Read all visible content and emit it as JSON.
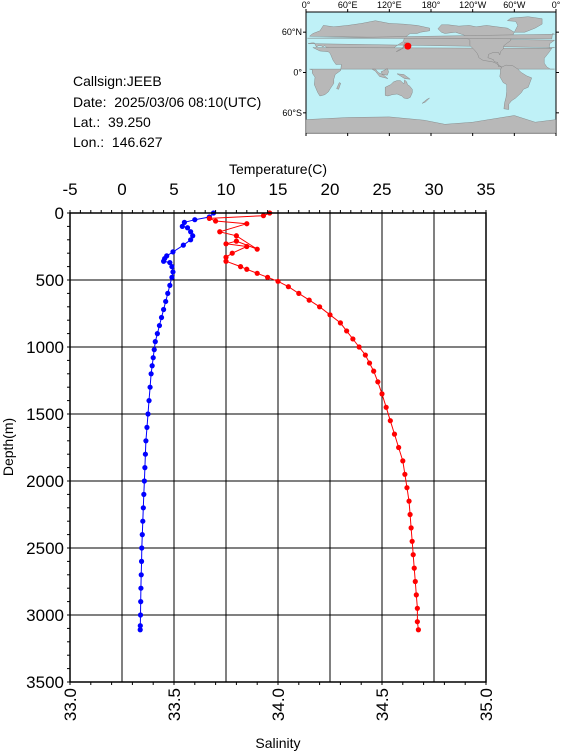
{
  "station": {
    "callsign": "Callsign:JEEB",
    "date": "Date:  2025/03/06 08:10(UTC)",
    "lat": "Lat.:  39.250",
    "lon": "Lon.:  146.627"
  },
  "map": {
    "lon_ticks": [
      "0°",
      "60°E",
      "120°E",
      "180°",
      "120°W",
      "60°W",
      "0°"
    ],
    "lat_ticks": [
      "60°N",
      "0°",
      "60°S"
    ],
    "marker": {
      "lon": 146.627,
      "lat": 39.25
    },
    "colors": {
      "ocean": "#bff1f7",
      "land": "#b8b8b8",
      "marker": "#ff0000"
    }
  },
  "chart_data": {
    "type": "line",
    "ylabel": "Depth(m)",
    "ylim": [
      3500,
      0
    ],
    "yticks": [
      0,
      500,
      1000,
      1500,
      2000,
      2500,
      3000,
      3500
    ],
    "x_top": {
      "label": "Temperature(C)",
      "range": [
        -5,
        35
      ],
      "ticks": [
        -5,
        0,
        5,
        10,
        15,
        20,
        25,
        30,
        35
      ]
    },
    "x_bottom": {
      "label": "Salinity",
      "range": [
        33.0,
        35.0
      ],
      "ticks": [
        "33.0",
        "33.5",
        "34.0",
        "34.5",
        "35.0"
      ]
    },
    "grid": true,
    "series": [
      {
        "axis": "top",
        "color": "#0000ff",
        "points": [
          [
            8.8,
            0
          ],
          [
            8.4,
            30
          ],
          [
            7.0,
            50
          ],
          [
            6.0,
            70
          ],
          [
            5.8,
            100
          ],
          [
            6.3,
            110
          ],
          [
            6.6,
            140
          ],
          [
            6.8,
            170
          ],
          [
            6.6,
            200
          ],
          [
            5.9,
            240
          ],
          [
            4.9,
            290
          ],
          [
            4.3,
            320
          ],
          [
            4.1,
            340
          ],
          [
            4.0,
            360
          ],
          [
            4.6,
            370
          ],
          [
            4.8,
            400
          ],
          [
            4.9,
            440
          ],
          [
            4.8,
            480
          ],
          [
            4.6,
            540
          ],
          [
            4.4,
            600
          ],
          [
            4.2,
            660
          ],
          [
            4.0,
            720
          ],
          [
            3.8,
            780
          ],
          [
            3.6,
            840
          ],
          [
            3.4,
            900
          ],
          [
            3.2,
            960
          ],
          [
            3.1,
            1020
          ],
          [
            3.0,
            1080
          ],
          [
            2.9,
            1140
          ],
          [
            2.8,
            1200
          ],
          [
            2.7,
            1300
          ],
          [
            2.6,
            1400
          ],
          [
            2.5,
            1500
          ],
          [
            2.4,
            1600
          ],
          [
            2.3,
            1700
          ],
          [
            2.25,
            1800
          ],
          [
            2.2,
            1900
          ],
          [
            2.15,
            2000
          ],
          [
            2.1,
            2100
          ],
          [
            2.05,
            2200
          ],
          [
            2.0,
            2300
          ],
          [
            1.95,
            2400
          ],
          [
            1.9,
            2500
          ],
          [
            1.88,
            2600
          ],
          [
            1.85,
            2700
          ],
          [
            1.82,
            2800
          ],
          [
            1.8,
            2900
          ],
          [
            1.78,
            3000
          ],
          [
            1.76,
            3080
          ],
          [
            1.75,
            3110
          ]
        ]
      },
      {
        "axis": "bottom",
        "color": "#ff0000",
        "points": [
          [
            33.96,
            0
          ],
          [
            33.93,
            20
          ],
          [
            33.67,
            40
          ],
          [
            33.7,
            60
          ],
          [
            33.85,
            80
          ],
          [
            33.72,
            140
          ],
          [
            33.8,
            170
          ],
          [
            33.9,
            270
          ],
          [
            33.8,
            210
          ],
          [
            33.75,
            230
          ],
          [
            33.85,
            250
          ],
          [
            33.78,
            300
          ],
          [
            33.75,
            330
          ],
          [
            33.75,
            360
          ],
          [
            33.82,
            400
          ],
          [
            33.85,
            420
          ],
          [
            33.9,
            450
          ],
          [
            33.95,
            480
          ],
          [
            34.0,
            510
          ],
          [
            34.05,
            550
          ],
          [
            34.1,
            600
          ],
          [
            34.15,
            650
          ],
          [
            34.2,
            700
          ],
          [
            34.25,
            760
          ],
          [
            34.3,
            820
          ],
          [
            34.33,
            880
          ],
          [
            34.36,
            940
          ],
          [
            34.39,
            1000
          ],
          [
            34.42,
            1060
          ],
          [
            34.44,
            1120
          ],
          [
            34.46,
            1180
          ],
          [
            34.48,
            1260
          ],
          [
            34.5,
            1350
          ],
          [
            34.52,
            1450
          ],
          [
            34.54,
            1550
          ],
          [
            34.56,
            1650
          ],
          [
            34.58,
            1750
          ],
          [
            34.6,
            1850
          ],
          [
            34.61,
            1950
          ],
          [
            34.62,
            2050
          ],
          [
            34.63,
            2150
          ],
          [
            34.635,
            2250
          ],
          [
            34.64,
            2350
          ],
          [
            34.645,
            2450
          ],
          [
            34.65,
            2550
          ],
          [
            34.655,
            2650
          ],
          [
            34.66,
            2750
          ],
          [
            34.665,
            2850
          ],
          [
            34.67,
            2950
          ],
          [
            34.67,
            3050
          ],
          [
            34.675,
            3110
          ]
        ]
      }
    ]
  }
}
